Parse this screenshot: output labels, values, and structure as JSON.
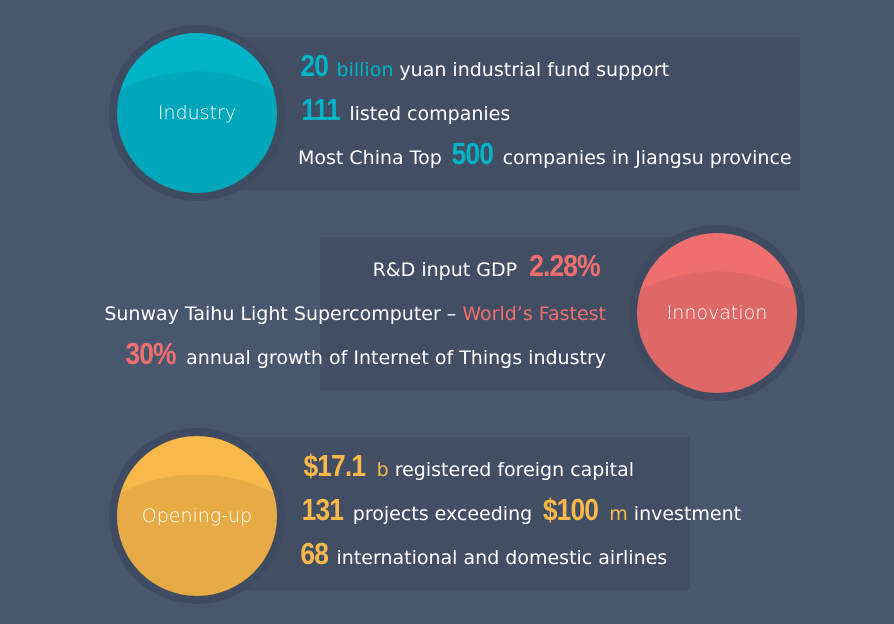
{
  "colors": {
    "industry": "#00b3c7",
    "innovation": "#ef6f6f",
    "opening": "#f8b84a",
    "background": "#48566e"
  },
  "sections": [
    {
      "id": "industry",
      "label": "Industry",
      "color": "#00b3c7",
      "lines": [
        [
          {
            "t": "20",
            "s": "big"
          },
          {
            "t": " billion",
            "s": "accent"
          },
          {
            "t": " yuan industrial fund support",
            "s": "plain"
          }
        ],
        [
          {
            "t": "111",
            "s": "big"
          },
          {
            "t": " listed companies",
            "s": "plain"
          }
        ],
        [
          {
            "t": "Most China Top ",
            "s": "plain"
          },
          {
            "t": "500",
            "s": "big"
          },
          {
            "t": " companies in Jiangsu province",
            "s": "plain"
          }
        ]
      ]
    },
    {
      "id": "innovation",
      "label": "Innovation",
      "color": "#ef6f6f",
      "lines": [
        [
          {
            "t": "R&D input GDP ",
            "s": "plain"
          },
          {
            "t": "2.28%",
            "s": "big"
          }
        ],
        [
          {
            "t": "Sunway Taihu Light Supercomputer – ",
            "s": "plain"
          },
          {
            "t": "World’s Fastest",
            "s": "accent"
          }
        ],
        [
          {
            "t": "30%",
            "s": "big"
          },
          {
            "t": " annual growth of Internet of Things industry",
            "s": "plain"
          }
        ]
      ]
    },
    {
      "id": "opening",
      "label": "Opening-up",
      "color": "#f8b84a",
      "lines": [
        [
          {
            "t": "$17.1",
            "s": "big"
          },
          {
            "t": " b",
            "s": "accent"
          },
          {
            "t": " registered foreign capital",
            "s": "plain"
          }
        ],
        [
          {
            "t": "131",
            "s": "big"
          },
          {
            "t": " projects exceeding ",
            "s": "plain"
          },
          {
            "t": "$100",
            "s": "big"
          },
          {
            "t": " m",
            "s": "accent"
          },
          {
            "t": " investment",
            "s": "plain"
          }
        ],
        [
          {
            "t": "68",
            "s": "big"
          },
          {
            "t": " international and domestic airlines",
            "s": "plain"
          }
        ]
      ]
    }
  ]
}
